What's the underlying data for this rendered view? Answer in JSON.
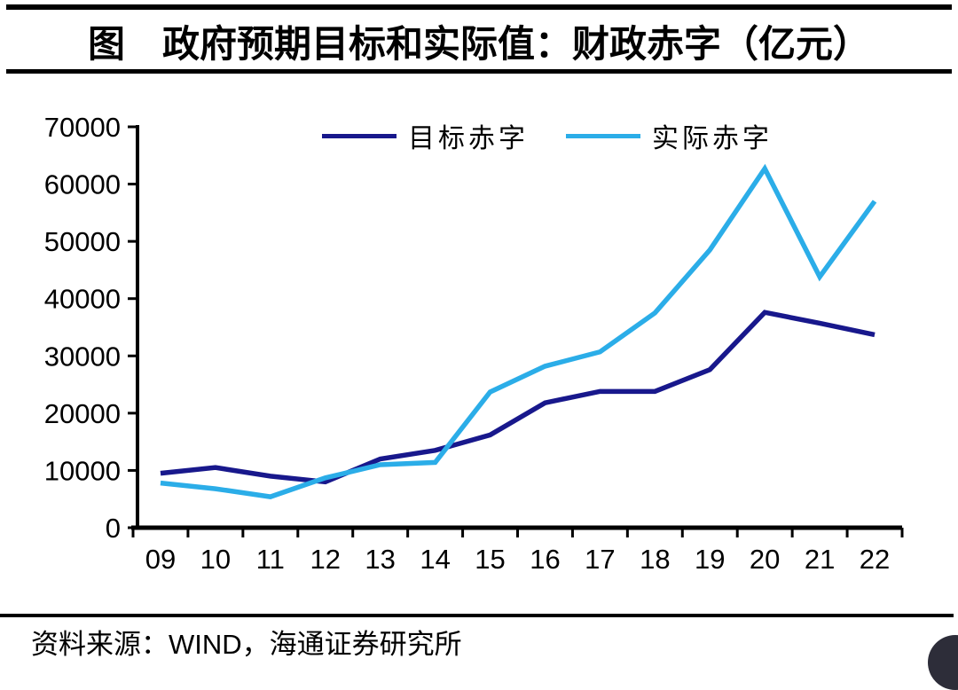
{
  "chart_data": {
    "type": "line",
    "title": "图　政府预期目标和实际值：财政赤字（亿元）",
    "unit": "亿元",
    "categories": [
      "09",
      "10",
      "11",
      "12",
      "13",
      "14",
      "15",
      "16",
      "17",
      "18",
      "19",
      "20",
      "21",
      "22"
    ],
    "series": [
      {
        "name": "目标赤字",
        "color": "#18188C",
        "values": [
          9500,
          10500,
          9000,
          8000,
          12000,
          13500,
          16200,
          21800,
          23800,
          23800,
          27600,
          37600,
          35700,
          33700
        ]
      },
      {
        "name": "实际赤字",
        "color": "#2BADE8",
        "values": [
          7800,
          6800,
          5400,
          8700,
          11000,
          11400,
          23700,
          28200,
          30700,
          37500,
          48500,
          62700,
          43800,
          57000
        ]
      }
    ],
    "ylim": [
      0,
      70000
    ],
    "yticks": [
      0,
      10000,
      20000,
      30000,
      40000,
      50000,
      60000,
      70000
    ],
    "grid": false,
    "legend_position": "top-center",
    "axis_color": "#000000"
  },
  "footer": {
    "source_prefix": "资料来源：",
    "source_name": "WIND",
    "source_suffix": "，海通证券研究所"
  },
  "decor": {
    "corner_icon": "corner-logo-fragment"
  }
}
